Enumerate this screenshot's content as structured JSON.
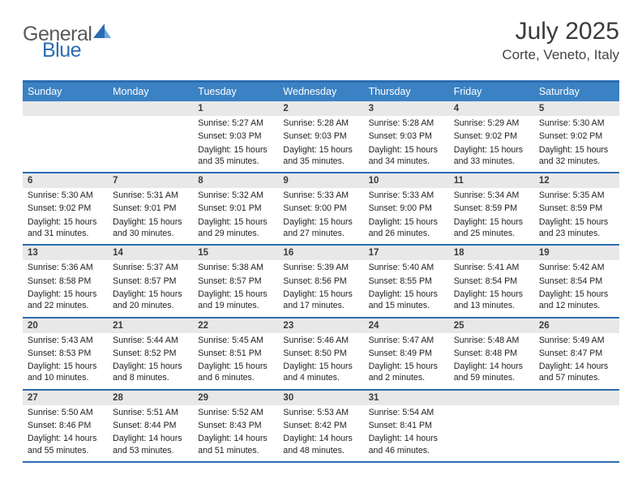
{
  "colors": {
    "header_border": "#2b6db3",
    "dayhead_bg": "#3b82c4",
    "daynum_bg": "#e8e8e8"
  },
  "logo": {
    "part1": "General",
    "part2": "Blue"
  },
  "title": "July 2025",
  "subtitle": "Corte, Veneto, Italy",
  "dayLabels": [
    "Sunday",
    "Monday",
    "Tuesday",
    "Wednesday",
    "Thursday",
    "Friday",
    "Saturday"
  ],
  "weeks": [
    [
      {
        "day": "",
        "sunrise": "",
        "sunset": "",
        "daylight": ""
      },
      {
        "day": "",
        "sunrise": "",
        "sunset": "",
        "daylight": ""
      },
      {
        "day": "1",
        "sunrise": "Sunrise: 5:27 AM",
        "sunset": "Sunset: 9:03 PM",
        "daylight": "Daylight: 15 hours and 35 minutes."
      },
      {
        "day": "2",
        "sunrise": "Sunrise: 5:28 AM",
        "sunset": "Sunset: 9:03 PM",
        "daylight": "Daylight: 15 hours and 35 minutes."
      },
      {
        "day": "3",
        "sunrise": "Sunrise: 5:28 AM",
        "sunset": "Sunset: 9:03 PM",
        "daylight": "Daylight: 15 hours and 34 minutes."
      },
      {
        "day": "4",
        "sunrise": "Sunrise: 5:29 AM",
        "sunset": "Sunset: 9:02 PM",
        "daylight": "Daylight: 15 hours and 33 minutes."
      },
      {
        "day": "5",
        "sunrise": "Sunrise: 5:30 AM",
        "sunset": "Sunset: 9:02 PM",
        "daylight": "Daylight: 15 hours and 32 minutes."
      }
    ],
    [
      {
        "day": "6",
        "sunrise": "Sunrise: 5:30 AM",
        "sunset": "Sunset: 9:02 PM",
        "daylight": "Daylight: 15 hours and 31 minutes."
      },
      {
        "day": "7",
        "sunrise": "Sunrise: 5:31 AM",
        "sunset": "Sunset: 9:01 PM",
        "daylight": "Daylight: 15 hours and 30 minutes."
      },
      {
        "day": "8",
        "sunrise": "Sunrise: 5:32 AM",
        "sunset": "Sunset: 9:01 PM",
        "daylight": "Daylight: 15 hours and 29 minutes."
      },
      {
        "day": "9",
        "sunrise": "Sunrise: 5:33 AM",
        "sunset": "Sunset: 9:00 PM",
        "daylight": "Daylight: 15 hours and 27 minutes."
      },
      {
        "day": "10",
        "sunrise": "Sunrise: 5:33 AM",
        "sunset": "Sunset: 9:00 PM",
        "daylight": "Daylight: 15 hours and 26 minutes."
      },
      {
        "day": "11",
        "sunrise": "Sunrise: 5:34 AM",
        "sunset": "Sunset: 8:59 PM",
        "daylight": "Daylight: 15 hours and 25 minutes."
      },
      {
        "day": "12",
        "sunrise": "Sunrise: 5:35 AM",
        "sunset": "Sunset: 8:59 PM",
        "daylight": "Daylight: 15 hours and 23 minutes."
      }
    ],
    [
      {
        "day": "13",
        "sunrise": "Sunrise: 5:36 AM",
        "sunset": "Sunset: 8:58 PM",
        "daylight": "Daylight: 15 hours and 22 minutes."
      },
      {
        "day": "14",
        "sunrise": "Sunrise: 5:37 AM",
        "sunset": "Sunset: 8:57 PM",
        "daylight": "Daylight: 15 hours and 20 minutes."
      },
      {
        "day": "15",
        "sunrise": "Sunrise: 5:38 AM",
        "sunset": "Sunset: 8:57 PM",
        "daylight": "Daylight: 15 hours and 19 minutes."
      },
      {
        "day": "16",
        "sunrise": "Sunrise: 5:39 AM",
        "sunset": "Sunset: 8:56 PM",
        "daylight": "Daylight: 15 hours and 17 minutes."
      },
      {
        "day": "17",
        "sunrise": "Sunrise: 5:40 AM",
        "sunset": "Sunset: 8:55 PM",
        "daylight": "Daylight: 15 hours and 15 minutes."
      },
      {
        "day": "18",
        "sunrise": "Sunrise: 5:41 AM",
        "sunset": "Sunset: 8:54 PM",
        "daylight": "Daylight: 15 hours and 13 minutes."
      },
      {
        "day": "19",
        "sunrise": "Sunrise: 5:42 AM",
        "sunset": "Sunset: 8:54 PM",
        "daylight": "Daylight: 15 hours and 12 minutes."
      }
    ],
    [
      {
        "day": "20",
        "sunrise": "Sunrise: 5:43 AM",
        "sunset": "Sunset: 8:53 PM",
        "daylight": "Daylight: 15 hours and 10 minutes."
      },
      {
        "day": "21",
        "sunrise": "Sunrise: 5:44 AM",
        "sunset": "Sunset: 8:52 PM",
        "daylight": "Daylight: 15 hours and 8 minutes."
      },
      {
        "day": "22",
        "sunrise": "Sunrise: 5:45 AM",
        "sunset": "Sunset: 8:51 PM",
        "daylight": "Daylight: 15 hours and 6 minutes."
      },
      {
        "day": "23",
        "sunrise": "Sunrise: 5:46 AM",
        "sunset": "Sunset: 8:50 PM",
        "daylight": "Daylight: 15 hours and 4 minutes."
      },
      {
        "day": "24",
        "sunrise": "Sunrise: 5:47 AM",
        "sunset": "Sunset: 8:49 PM",
        "daylight": "Daylight: 15 hours and 2 minutes."
      },
      {
        "day": "25",
        "sunrise": "Sunrise: 5:48 AM",
        "sunset": "Sunset: 8:48 PM",
        "daylight": "Daylight: 14 hours and 59 minutes."
      },
      {
        "day": "26",
        "sunrise": "Sunrise: 5:49 AM",
        "sunset": "Sunset: 8:47 PM",
        "daylight": "Daylight: 14 hours and 57 minutes."
      }
    ],
    [
      {
        "day": "27",
        "sunrise": "Sunrise: 5:50 AM",
        "sunset": "Sunset: 8:46 PM",
        "daylight": "Daylight: 14 hours and 55 minutes."
      },
      {
        "day": "28",
        "sunrise": "Sunrise: 5:51 AM",
        "sunset": "Sunset: 8:44 PM",
        "daylight": "Daylight: 14 hours and 53 minutes."
      },
      {
        "day": "29",
        "sunrise": "Sunrise: 5:52 AM",
        "sunset": "Sunset: 8:43 PM",
        "daylight": "Daylight: 14 hours and 51 minutes."
      },
      {
        "day": "30",
        "sunrise": "Sunrise: 5:53 AM",
        "sunset": "Sunset: 8:42 PM",
        "daylight": "Daylight: 14 hours and 48 minutes."
      },
      {
        "day": "31",
        "sunrise": "Sunrise: 5:54 AM",
        "sunset": "Sunset: 8:41 PM",
        "daylight": "Daylight: 14 hours and 46 minutes."
      },
      {
        "day": "",
        "sunrise": "",
        "sunset": "",
        "daylight": ""
      },
      {
        "day": "",
        "sunrise": "",
        "sunset": "",
        "daylight": ""
      }
    ]
  ]
}
